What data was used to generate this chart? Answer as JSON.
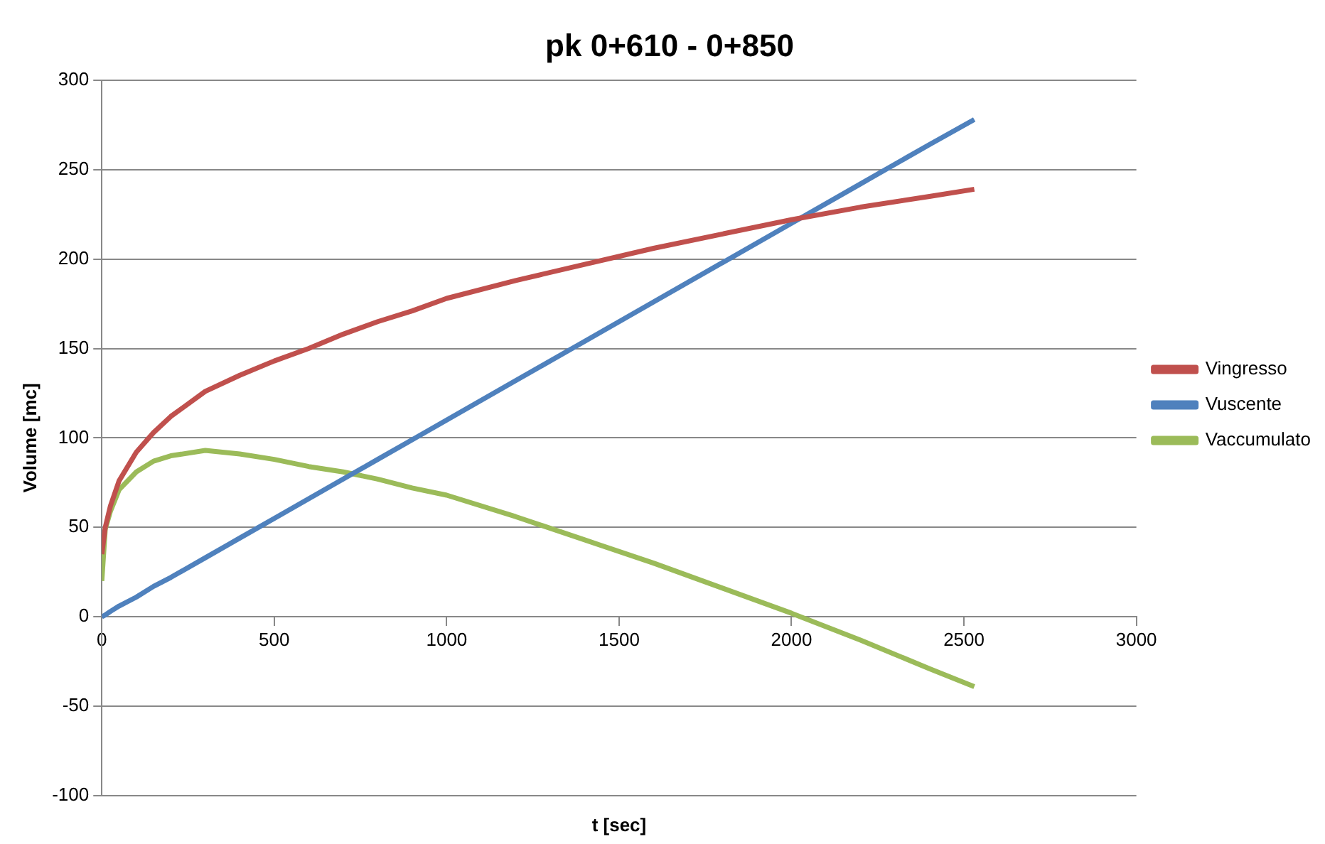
{
  "chart_data": {
    "type": "line",
    "title": "pk 0+610 - 0+850",
    "xlabel": "t [sec]",
    "ylabel": "Volume [mc]",
    "x": [
      0,
      10,
      25,
      50,
      100,
      150,
      200,
      300,
      400,
      500,
      600,
      700,
      800,
      900,
      1000,
      1200,
      1400,
      1600,
      1800,
      2000,
      2200,
      2400,
      2530
    ],
    "series": [
      {
        "name": "Vingresso",
        "color": "#c0504d",
        "values": [
          35,
          50,
          62,
          76,
          92,
          103,
          112,
          126,
          135,
          143,
          150,
          158,
          165,
          171,
          178,
          188,
          197,
          206,
          214,
          222,
          229,
          235,
          239
        ]
      },
      {
        "name": "Vuscente",
        "color": "#4f81bd",
        "values": [
          0,
          1,
          3,
          6,
          11,
          17,
          22,
          33,
          44,
          55,
          66,
          77,
          88,
          99,
          110,
          132,
          154,
          176,
          198,
          220,
          242,
          264,
          278
        ]
      },
      {
        "name": "Vaccumulato",
        "color": "#9bbb59",
        "values": [
          20,
          49,
          59,
          71,
          81,
          87,
          90,
          93,
          91,
          88,
          84,
          81,
          77,
          72,
          68,
          56,
          43,
          30,
          16,
          2,
          -13,
          -29,
          -39
        ]
      }
    ],
    "xlim": [
      0,
      3000
    ],
    "xticks": [
      0,
      500,
      1000,
      1500,
      2000,
      2500,
      3000
    ],
    "ylim": [
      -100,
      300
    ],
    "yticks": [
      -100,
      -50,
      0,
      50,
      100,
      150,
      200,
      250,
      300
    ],
    "grid": "y",
    "legend": "right"
  }
}
